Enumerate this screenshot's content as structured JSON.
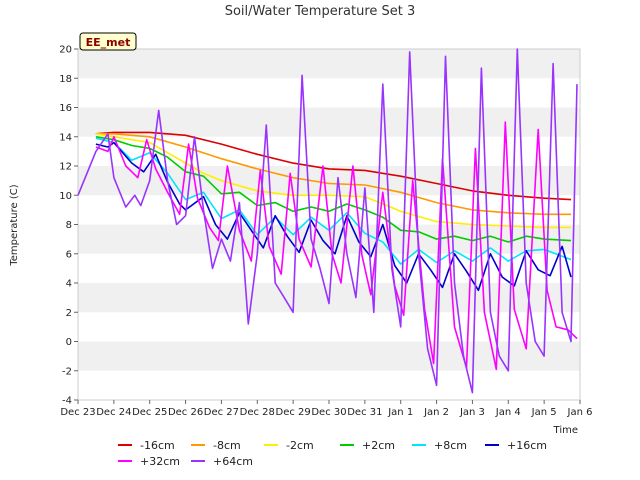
{
  "chart_data": {
    "type": "line",
    "title": "Soil/Water Temperature Set 3",
    "xlabel": "Time",
    "ylabel": "Temperature (C)",
    "ylim": [
      -4,
      20
    ],
    "yticks": [
      -4,
      -2,
      0,
      2,
      4,
      6,
      8,
      10,
      12,
      14,
      16,
      18,
      20
    ],
    "x_range": [
      "2022-12-23",
      "2023-01-06"
    ],
    "xtick_labels": [
      "Dec 23",
      "Dec 24",
      "Dec 25",
      "Dec 26",
      "Dec 27",
      "Dec 28",
      "Dec 29",
      "Dec 30",
      "Dec 31",
      "Jan 1",
      "Jan 2",
      "Jan 3",
      "Jan 4",
      "Jan 5",
      "Jan 6"
    ],
    "xtick_dates": [
      "2022-12-23",
      "2022-12-24",
      "2022-12-25",
      "2022-12-26",
      "2022-12-27",
      "2022-12-28",
      "2022-12-29",
      "2022-12-30",
      "2022-12-31",
      "2023-01-01",
      "2023-01-02",
      "2023-01-03",
      "2023-01-04",
      "2023-01-05",
      "2023-01-06"
    ],
    "grid": "horizontal bands",
    "legend_position": "bottom",
    "badge": "EE_met",
    "series": [
      {
        "name": "-16cm",
        "color": "#dd0000",
        "x": [
          "2022-12-23 12:00",
          "2022-12-24 00:00",
          "2022-12-25 00:00",
          "2022-12-26 00:00",
          "2022-12-27 00:00",
          "2022-12-28 00:00",
          "2022-12-29 00:00",
          "2022-12-30 00:00",
          "2022-12-31 00:00",
          "2023-01-01 00:00",
          "2023-01-02 00:00",
          "2023-01-03 00:00",
          "2023-01-04 00:00",
          "2023-01-05 00:00",
          "2023-01-05 18:00"
        ],
        "y": [
          14.2,
          14.3,
          14.3,
          14.1,
          13.5,
          12.8,
          12.2,
          11.8,
          11.7,
          11.3,
          10.8,
          10.3,
          10.0,
          9.8,
          9.7
        ]
      },
      {
        "name": "-8cm",
        "color": "#ff9900",
        "x": [
          "2022-12-23 12:00",
          "2022-12-24 00:00",
          "2022-12-25 00:00",
          "2022-12-26 00:00",
          "2022-12-27 00:00",
          "2022-12-28 00:00",
          "2022-12-29 00:00",
          "2022-12-30 00:00",
          "2022-12-31 00:00",
          "2023-01-01 00:00",
          "2023-01-02 00:00",
          "2023-01-03 00:00",
          "2023-01-04 00:00",
          "2023-01-05 00:00",
          "2023-01-05 18:00"
        ],
        "y": [
          14.2,
          14.2,
          14.0,
          13.3,
          12.5,
          11.8,
          11.2,
          10.8,
          10.7,
          10.2,
          9.5,
          9.0,
          8.8,
          8.7,
          8.7
        ]
      },
      {
        "name": "-2cm",
        "color": "#ffee00",
        "x": [
          "2022-12-23 12:00",
          "2022-12-24 00:00",
          "2022-12-25 00:00",
          "2022-12-26 00:00",
          "2022-12-26 12:00",
          "2022-12-27 00:00",
          "2022-12-28 00:00",
          "2022-12-29 00:00",
          "2022-12-30 00:00",
          "2022-12-31 00:00",
          "2023-01-01 00:00",
          "2023-01-02 00:00",
          "2023-01-03 00:00",
          "2023-01-04 00:00",
          "2023-01-05 00:00",
          "2023-01-05 18:00"
        ],
        "y": [
          14.2,
          14.0,
          13.6,
          12.2,
          11.5,
          11.0,
          10.3,
          10.0,
          10.0,
          9.9,
          8.9,
          8.2,
          8.0,
          7.9,
          7.8,
          7.8
        ]
      },
      {
        "name": "+2cm",
        "color": "#00cc00",
        "x": [
          "2022-12-23 12:00",
          "2022-12-24 00:00",
          "2022-12-24 12:00",
          "2022-12-25 00:00",
          "2022-12-25 12:00",
          "2022-12-26 00:00",
          "2022-12-26 12:00",
          "2022-12-27 00:00",
          "2022-12-27 12:00",
          "2022-12-28 00:00",
          "2022-12-28 12:00",
          "2022-12-29 00:00",
          "2022-12-29 12:00",
          "2022-12-30 00:00",
          "2022-12-30 12:00",
          "2022-12-31 00:00",
          "2022-12-31 12:00",
          "2023-01-01 00:00",
          "2023-01-01 12:00",
          "2023-01-02 00:00",
          "2023-01-02 12:00",
          "2023-01-03 00:00",
          "2023-01-03 12:00",
          "2023-01-04 00:00",
          "2023-01-04 12:00",
          "2023-01-05 00:00",
          "2023-01-05 18:00"
        ],
        "y": [
          14.0,
          13.8,
          13.4,
          13.2,
          12.6,
          11.6,
          11.3,
          10.1,
          10.2,
          9.3,
          9.5,
          8.9,
          9.2,
          8.9,
          9.4,
          9.0,
          8.5,
          7.6,
          7.5,
          7.0,
          7.2,
          6.9,
          7.2,
          6.8,
          7.2,
          7.0,
          6.9
        ]
      },
      {
        "name": "+8cm",
        "color": "#00e5ff",
        "x": [
          "2022-12-23 12:00",
          "2022-12-24 00:00",
          "2022-12-24 12:00",
          "2022-12-25 00:00",
          "2022-12-25 12:00",
          "2022-12-26 00:00",
          "2022-12-26 12:00",
          "2022-12-27 00:00",
          "2022-12-27 12:00",
          "2022-12-28 00:00",
          "2022-12-28 12:00",
          "2022-12-29 00:00",
          "2022-12-29 12:00",
          "2022-12-30 00:00",
          "2022-12-30 12:00",
          "2022-12-31 00:00",
          "2022-12-31 12:00",
          "2023-01-01 00:00",
          "2023-01-01 12:00",
          "2023-01-02 00:00",
          "2023-01-02 12:00",
          "2023-01-03 00:00",
          "2023-01-03 12:00",
          "2023-01-04 00:00",
          "2023-01-04 12:00",
          "2023-01-05 00:00",
          "2023-01-05 18:00"
        ],
        "y": [
          13.9,
          13.6,
          12.4,
          12.9,
          11.5,
          9.7,
          10.2,
          8.4,
          9.0,
          7.3,
          8.5,
          7.3,
          8.5,
          7.6,
          8.8,
          7.4,
          6.8,
          5.3,
          6.3,
          5.4,
          6.2,
          5.5,
          6.4,
          5.5,
          6.2,
          6.3,
          5.6
        ]
      },
      {
        "name": "+16cm",
        "color": "#0000cc",
        "x": [
          "2022-12-23 12:00",
          "2022-12-23 20:00",
          "2022-12-24 00:00",
          "2022-12-24 12:00",
          "2022-12-24 20:00",
          "2022-12-25 04:00",
          "2022-12-25 12:00",
          "2022-12-25 20:00",
          "2022-12-26 00:00",
          "2022-12-26 12:00",
          "2022-12-26 20:00",
          "2022-12-27 04:00",
          "2022-12-27 12:00",
          "2022-12-27 20:00",
          "2022-12-28 04:00",
          "2022-12-28 12:00",
          "2022-12-28 20:00",
          "2022-12-29 04:00",
          "2022-12-29 12:00",
          "2022-12-29 20:00",
          "2022-12-30 04:00",
          "2022-12-30 12:00",
          "2022-12-30 20:00",
          "2022-12-31 04:00",
          "2022-12-31 12:00",
          "2022-12-31 20:00",
          "2023-01-01 04:00",
          "2023-01-01 12:00",
          "2023-01-01 20:00",
          "2023-01-02 04:00",
          "2023-01-02 12:00",
          "2023-01-02 20:00",
          "2023-01-03 04:00",
          "2023-01-03 12:00",
          "2023-01-03 20:00",
          "2023-01-04 04:00",
          "2023-01-04 12:00",
          "2023-01-04 20:00",
          "2023-01-05 04:00",
          "2023-01-05 12:00",
          "2023-01-05 18:00"
        ],
        "y": [
          13.5,
          13.3,
          13.6,
          12.2,
          11.6,
          12.8,
          10.9,
          9.4,
          9.0,
          9.9,
          8.0,
          7.0,
          8.8,
          7.6,
          6.4,
          8.6,
          7.2,
          6.1,
          8.3,
          6.9,
          6.0,
          8.6,
          6.8,
          5.8,
          8.0,
          5.2,
          4.0,
          6.0,
          4.9,
          3.7,
          6.0,
          4.8,
          3.5,
          6.0,
          4.4,
          3.8,
          6.2,
          4.9,
          4.5,
          6.5,
          4.4
        ]
      },
      {
        "name": "+32cm",
        "color": "#ff00ff",
        "x": [
          "2022-12-23 12:00",
          "2022-12-23 20:00",
          "2022-12-24 00:00",
          "2022-12-24 08:00",
          "2022-12-24 16:00",
          "2022-12-24 22:00",
          "2022-12-25 04:00",
          "2022-12-25 12:00",
          "2022-12-25 20:00",
          "2022-12-26 02:00",
          "2022-12-26 08:00",
          "2022-12-26 16:00",
          "2022-12-26 22:00",
          "2022-12-27 04:00",
          "2022-12-27 12:00",
          "2022-12-27 20:00",
          "2022-12-28 02:00",
          "2022-12-28 08:00",
          "2022-12-28 16:00",
          "2022-12-28 22:00",
          "2022-12-29 04:00",
          "2022-12-29 12:00",
          "2022-12-29 20:00",
          "2022-12-30 02:00",
          "2022-12-30 08:00",
          "2022-12-30 16:00",
          "2022-12-30 22:00",
          "2022-12-31 04:00",
          "2022-12-31 12:00",
          "2022-12-31 20:00",
          "2023-01-01 02:00",
          "2023-01-01 08:00",
          "2023-01-01 16:00",
          "2023-01-01 22:00",
          "2023-01-02 04:00",
          "2023-01-02 12:00",
          "2023-01-02 20:00",
          "2023-01-03 02:00",
          "2023-01-03 08:00",
          "2023-01-03 16:00",
          "2023-01-03 22:00",
          "2023-01-04 04:00",
          "2023-01-04 12:00",
          "2023-01-04 20:00",
          "2023-01-05 02:00",
          "2023-01-05 08:00",
          "2023-01-05 16:00",
          "2023-01-05 22:00"
        ],
        "y": [
          13.3,
          13.0,
          14.0,
          12.0,
          11.2,
          13.8,
          11.8,
          10.2,
          8.7,
          13.5,
          9.8,
          7.8,
          6.9,
          12.0,
          7.6,
          5.5,
          11.7,
          6.5,
          4.6,
          11.5,
          7.0,
          5.1,
          12.0,
          6.0,
          4.0,
          12.0,
          5.9,
          3.2,
          10.2,
          3.8,
          1.8,
          11.0,
          2.2,
          -1.5,
          12.5,
          1.0,
          -1.8,
          13.2,
          2.0,
          -1.9,
          15.0,
          2.2,
          -0.5,
          14.5,
          3.5,
          1.0,
          0.8,
          0.2
        ]
      },
      {
        "name": "+64cm",
        "color": "#9933ff",
        "x": [
          "2022-12-23 00:00",
          "2022-12-23 12:00",
          "2022-12-23 20:00",
          "2022-12-24 00:00",
          "2022-12-24 08:00",
          "2022-12-24 14:00",
          "2022-12-24 18:00",
          "2022-12-25 00:00",
          "2022-12-25 06:00",
          "2022-12-25 12:00",
          "2022-12-25 18:00",
          "2022-12-26 00:00",
          "2022-12-26 06:00",
          "2022-12-26 12:00",
          "2022-12-26 18:00",
          "2022-12-27 00:00",
          "2022-12-27 06:00",
          "2022-12-27 12:00",
          "2022-12-27 18:00",
          "2022-12-28 00:00",
          "2022-12-28 06:00",
          "2022-12-28 12:00",
          "2022-12-28 18:00",
          "2022-12-29 00:00",
          "2022-12-29 06:00",
          "2022-12-29 12:00",
          "2022-12-29 18:00",
          "2022-12-30 00:00",
          "2022-12-30 06:00",
          "2022-12-30 12:00",
          "2022-12-30 18:00",
          "2022-12-31 00:00",
          "2022-12-31 06:00",
          "2022-12-31 12:00",
          "2022-12-31 18:00",
          "2023-01-01 00:00",
          "2023-01-01 06:00",
          "2023-01-01 12:00",
          "2023-01-01 18:00",
          "2023-01-02 00:00",
          "2023-01-02 06:00",
          "2023-01-02 12:00",
          "2023-01-02 18:00",
          "2023-01-03 00:00",
          "2023-01-03 06:00",
          "2023-01-03 12:00",
          "2023-01-03 18:00",
          "2023-01-04 00:00",
          "2023-01-04 06:00",
          "2023-01-04 12:00",
          "2023-01-04 18:00",
          "2023-01-05 00:00",
          "2023-01-05 06:00",
          "2023-01-05 12:00",
          "2023-01-05 18:00",
          "2023-01-05 22:00"
        ],
        "y": [
          10.0,
          13.0,
          14.2,
          11.2,
          9.2,
          10.0,
          9.3,
          11.0,
          15.8,
          11.0,
          8.0,
          8.6,
          14.0,
          9.0,
          5.0,
          7.0,
          5.5,
          9.5,
          1.2,
          6.0,
          14.8,
          4.0,
          3.0,
          2.0,
          18.2,
          7.0,
          5.0,
          2.6,
          11.2,
          6.0,
          3.0,
          10.5,
          2.0,
          17.6,
          5.0,
          1.0,
          19.8,
          6.0,
          -0.5,
          -3.0,
          19.5,
          4.0,
          -1.0,
          -3.5,
          18.7,
          2.0,
          -1.0,
          -2.0,
          20.0,
          4.0,
          0.0,
          -1.0,
          19.0,
          2.0,
          0.0,
          17.6
        ]
      }
    ]
  }
}
